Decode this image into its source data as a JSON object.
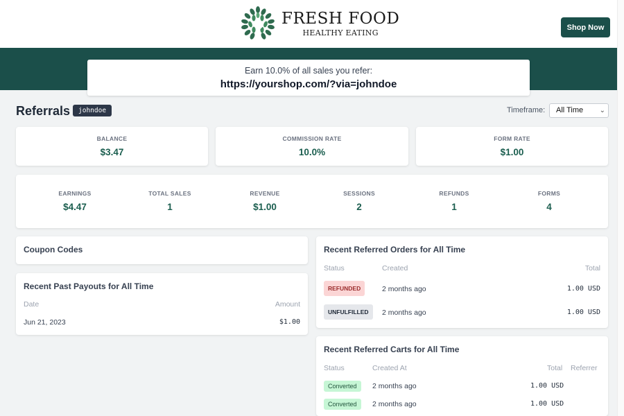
{
  "brand": {
    "title": "FRESH FOOD",
    "subtitle": "HEALTHY EATING",
    "accent": "#1b4f4a"
  },
  "header": {
    "shop_button": "Shop Now"
  },
  "referral": {
    "earn_text": "Earn 10.0% of all sales you refer:",
    "url": "https://yourshop.com/?via=johndoe"
  },
  "page": {
    "title": "Referrals",
    "username": "johndoe",
    "timeframe_label": "Timeframe:",
    "timeframe_value": "All Time"
  },
  "top_stats": [
    {
      "label": "BALANCE",
      "value": "$3.47"
    },
    {
      "label": "COMMISSION RATE",
      "value": "10.0%"
    },
    {
      "label": "FORM RATE",
      "value": "$1.00"
    }
  ],
  "metrics": [
    {
      "label": "EARNINGS",
      "value": "$4.47"
    },
    {
      "label": "TOTAL SALES",
      "value": "1"
    },
    {
      "label": "REVENUE",
      "value": "$1.00"
    },
    {
      "label": "SESSIONS",
      "value": "2"
    },
    {
      "label": "REFUNDS",
      "value": "1"
    },
    {
      "label": "FORMS",
      "value": "4"
    }
  ],
  "coupons": {
    "title": "Coupon Codes"
  },
  "payouts": {
    "title": "Recent Past Payouts for All Time",
    "columns": {
      "date": "Date",
      "amount": "Amount"
    },
    "rows": [
      {
        "date": "Jun 21, 2023",
        "amount": "$1.00"
      }
    ]
  },
  "orders": {
    "title": "Recent Referred Orders for All Time",
    "columns": {
      "status": "Status",
      "created": "Created",
      "total": "Total"
    },
    "rows": [
      {
        "status": "REFUNDED",
        "created": "2 months ago",
        "total": "1.00 USD"
      },
      {
        "status": "UNFULFILLED",
        "created": "2 months ago",
        "total": "1.00 USD"
      }
    ]
  },
  "carts": {
    "title": "Recent Referred Carts for All Time",
    "columns": {
      "status": "Status",
      "created": "Created At",
      "total": "Total",
      "referrer": "Referrer"
    },
    "rows": [
      {
        "status": "Converted",
        "created": "2 months ago",
        "total": "1.00 USD"
      },
      {
        "status": "Converted",
        "created": "2 months ago",
        "total": "1.00 USD"
      }
    ]
  }
}
